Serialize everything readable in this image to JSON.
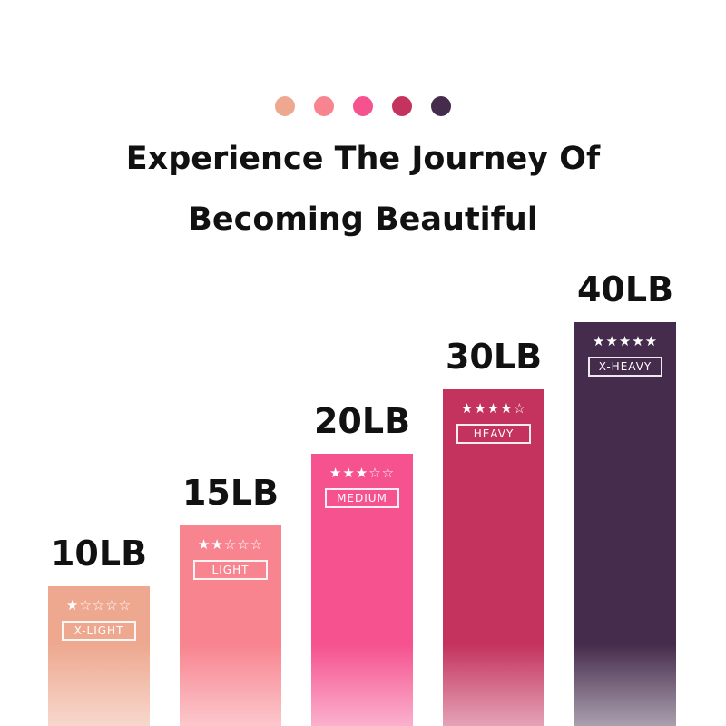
{
  "colors": [
    "#eea890",
    "#f8848f",
    "#f5528f",
    "#c4335e",
    "#452c4c"
  ],
  "title_line1": "Experience The Journey Of",
  "title_line2": "Becoming Beautiful",
  "bands": [
    {
      "weight": "10LB",
      "level": "X-LIGHT",
      "rating": 1,
      "stars": "★☆☆☆☆",
      "color": "#eea890"
    },
    {
      "weight": "15LB",
      "level": "LIGHT",
      "rating": 2,
      "stars": "★★☆☆☆",
      "color": "#f8848f"
    },
    {
      "weight": "20LB",
      "level": "MEDIUM",
      "rating": 3,
      "stars": "★★★☆☆",
      "color": "#f5528f"
    },
    {
      "weight": "30LB",
      "level": "HEAVY",
      "rating": 4,
      "stars": "★★★★☆",
      "color": "#c4335e"
    },
    {
      "weight": "40LB",
      "level": "X-HEAVY",
      "rating": 5,
      "stars": "★★★★★",
      "color": "#452c4c"
    }
  ]
}
